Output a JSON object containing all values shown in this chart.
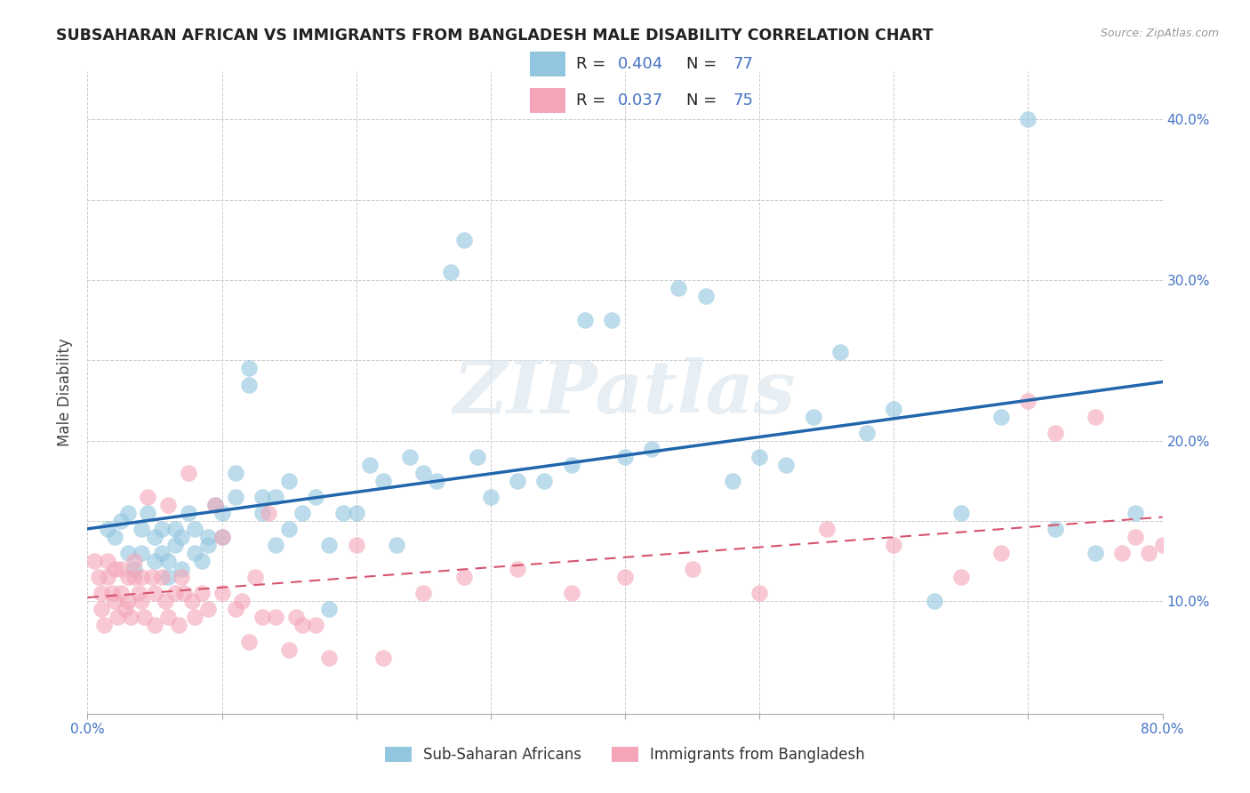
{
  "title": "SUBSAHARAN AFRICAN VS IMMIGRANTS FROM BANGLADESH MALE DISABILITY CORRELATION CHART",
  "source": "Source: ZipAtlas.com",
  "ylabel": "Male Disability",
  "xlim": [
    0.0,
    0.8
  ],
  "ylim": [
    0.03,
    0.43
  ],
  "xtick_positions": [
    0.0,
    0.1,
    0.2,
    0.3,
    0.4,
    0.5,
    0.6,
    0.7,
    0.8
  ],
  "xticklabels": [
    "0.0%",
    "",
    "",
    "",
    "",
    "",
    "",
    "",
    "80.0%"
  ],
  "ytick_positions": [
    0.1,
    0.15,
    0.2,
    0.25,
    0.3,
    0.35,
    0.4
  ],
  "ytick_labels_right": [
    "10.0%",
    "",
    "20.0%",
    "",
    "30.0%",
    "",
    "40.0%"
  ],
  "grid_yticks": [
    0.1,
    0.15,
    0.2,
    0.25,
    0.3,
    0.35,
    0.4
  ],
  "legend_label1": "Sub-Saharan Africans",
  "legend_label2": "Immigrants from Bangladesh",
  "color_blue": "#92c5de",
  "color_pink": "#f4a6b8",
  "line_blue": "#2166ac",
  "line_pink": "#d6546e",
  "axis_color": "#4472C4",
  "background": "#ffffff",
  "watermark": "ZIPatlas",
  "blue_x": [
    0.015,
    0.02,
    0.025,
    0.03,
    0.03,
    0.035,
    0.04,
    0.04,
    0.045,
    0.05,
    0.05,
    0.055,
    0.055,
    0.06,
    0.06,
    0.065,
    0.065,
    0.07,
    0.07,
    0.075,
    0.08,
    0.08,
    0.085,
    0.09,
    0.09,
    0.095,
    0.1,
    0.1,
    0.11,
    0.11,
    0.12,
    0.12,
    0.13,
    0.13,
    0.14,
    0.14,
    0.15,
    0.15,
    0.16,
    0.17,
    0.18,
    0.18,
    0.19,
    0.2,
    0.21,
    0.22,
    0.23,
    0.24,
    0.25,
    0.26,
    0.27,
    0.28,
    0.29,
    0.3,
    0.32,
    0.34,
    0.36,
    0.37,
    0.39,
    0.4,
    0.42,
    0.44,
    0.46,
    0.48,
    0.5,
    0.52,
    0.54,
    0.56,
    0.58,
    0.6,
    0.63,
    0.65,
    0.68,
    0.7,
    0.72,
    0.75,
    0.78
  ],
  "blue_y": [
    0.145,
    0.14,
    0.15,
    0.13,
    0.155,
    0.12,
    0.13,
    0.145,
    0.155,
    0.125,
    0.14,
    0.13,
    0.145,
    0.115,
    0.125,
    0.135,
    0.145,
    0.12,
    0.14,
    0.155,
    0.13,
    0.145,
    0.125,
    0.135,
    0.14,
    0.16,
    0.14,
    0.155,
    0.18,
    0.165,
    0.235,
    0.245,
    0.155,
    0.165,
    0.135,
    0.165,
    0.145,
    0.175,
    0.155,
    0.165,
    0.135,
    0.095,
    0.155,
    0.155,
    0.185,
    0.175,
    0.135,
    0.19,
    0.18,
    0.175,
    0.305,
    0.325,
    0.19,
    0.165,
    0.175,
    0.175,
    0.185,
    0.275,
    0.275,
    0.19,
    0.195,
    0.295,
    0.29,
    0.175,
    0.19,
    0.185,
    0.215,
    0.255,
    0.205,
    0.22,
    0.1,
    0.155,
    0.215,
    0.4,
    0.145,
    0.13,
    0.155
  ],
  "pink_x": [
    0.005,
    0.008,
    0.01,
    0.01,
    0.012,
    0.015,
    0.015,
    0.018,
    0.02,
    0.02,
    0.022,
    0.025,
    0.025,
    0.028,
    0.03,
    0.03,
    0.032,
    0.035,
    0.035,
    0.038,
    0.04,
    0.04,
    0.042,
    0.045,
    0.048,
    0.05,
    0.05,
    0.055,
    0.058,
    0.06,
    0.06,
    0.065,
    0.068,
    0.07,
    0.072,
    0.075,
    0.078,
    0.08,
    0.085,
    0.09,
    0.095,
    0.1,
    0.1,
    0.11,
    0.115,
    0.12,
    0.125,
    0.13,
    0.135,
    0.14,
    0.15,
    0.155,
    0.16,
    0.17,
    0.18,
    0.2,
    0.22,
    0.25,
    0.28,
    0.32,
    0.36,
    0.4,
    0.45,
    0.5,
    0.55,
    0.6,
    0.65,
    0.68,
    0.7,
    0.72,
    0.75,
    0.77,
    0.78,
    0.79,
    0.8
  ],
  "pink_y": [
    0.125,
    0.115,
    0.105,
    0.095,
    0.085,
    0.125,
    0.115,
    0.105,
    0.12,
    0.1,
    0.09,
    0.12,
    0.105,
    0.095,
    0.115,
    0.1,
    0.09,
    0.125,
    0.115,
    0.105,
    0.115,
    0.1,
    0.09,
    0.165,
    0.115,
    0.105,
    0.085,
    0.115,
    0.1,
    0.09,
    0.16,
    0.105,
    0.085,
    0.115,
    0.105,
    0.18,
    0.1,
    0.09,
    0.105,
    0.095,
    0.16,
    0.14,
    0.105,
    0.095,
    0.1,
    0.075,
    0.115,
    0.09,
    0.155,
    0.09,
    0.07,
    0.09,
    0.085,
    0.085,
    0.065,
    0.135,
    0.065,
    0.105,
    0.115,
    0.12,
    0.105,
    0.115,
    0.12,
    0.105,
    0.145,
    0.135,
    0.115,
    0.13,
    0.225,
    0.205,
    0.215,
    0.13,
    0.14,
    0.13,
    0.135
  ]
}
